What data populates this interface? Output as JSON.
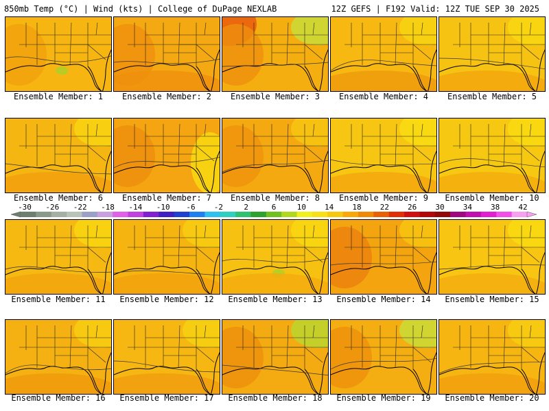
{
  "header": {
    "left": "850mb Temp (°C) | Wind (kts) | College of DuPage NEXLAB",
    "right": "12Z GEFS | F192 Valid: 12Z TUE SEP 30 2025"
  },
  "panels": [
    {
      "label": "Ensemble Member: 1",
      "base": "#f6b511",
      "accents": [
        {
          "c": "#f3a10e",
          "s": "w"
        },
        {
          "c": "#a9d229",
          "s": "gulf-spot"
        }
      ]
    },
    {
      "label": "Ensemble Member: 2",
      "base": "#f4a812",
      "accents": [
        {
          "c": "#ef900d",
          "s": "s"
        },
        {
          "c": "#ef900d",
          "s": "w"
        }
      ]
    },
    {
      "label": "Ensemble Member: 3",
      "base": "#f5ae10",
      "accents": [
        {
          "c": "#e8560f",
          "s": "nw"
        },
        {
          "c": "#ef8f0e",
          "s": "w"
        },
        {
          "c": "#c8df3a",
          "s": "ne"
        }
      ]
    },
    {
      "label": "Ensemble Member: 4",
      "base": "#f6b811",
      "accents": [
        {
          "c": "#f09a0d",
          "s": "s"
        },
        {
          "c": "#f8d611",
          "s": "ne"
        }
      ]
    },
    {
      "label": "Ensemble Member: 5",
      "base": "#f7c312",
      "accents": [
        {
          "c": "#f9d812",
          "s": "ne"
        },
        {
          "c": "#f3a50e",
          "s": "s"
        }
      ]
    },
    {
      "label": "Ensemble Member: 6",
      "base": "#f6b612",
      "accents": [
        {
          "c": "#f29f0e",
          "s": "s"
        },
        {
          "c": "#f9d611",
          "s": "ne"
        }
      ]
    },
    {
      "label": "Ensemble Member: 7",
      "base": "#f4a511",
      "accents": [
        {
          "c": "#ee8d0d",
          "s": "w"
        },
        {
          "c": "#f9dc12",
          "s": "e"
        }
      ]
    },
    {
      "label": "Ensemble Member: 8",
      "base": "#f4a911",
      "accents": [
        {
          "c": "#ef920d",
          "s": "w"
        },
        {
          "c": "#f7c711",
          "s": "ne"
        }
      ]
    },
    {
      "label": "Ensemble Member: 9",
      "base": "#f7c612",
      "accents": [
        {
          "c": "#f9dd12",
          "s": "ne"
        },
        {
          "c": "#f3a50e",
          "s": "s"
        }
      ]
    },
    {
      "label": "Ensemble Member: 10",
      "base": "#f7c812",
      "accents": [
        {
          "c": "#f9dc12",
          "s": "ne"
        },
        {
          "c": "#f4ad0f",
          "s": "s"
        }
      ]
    },
    {
      "label": "Ensemble Member: 11",
      "base": "#f6b912",
      "accents": [
        {
          "c": "#f3a40e",
          "s": "s"
        },
        {
          "c": "#f9d811",
          "s": "ne"
        }
      ]
    },
    {
      "label": "Ensemble Member: 12",
      "base": "#f6b411",
      "accents": [
        {
          "c": "#f2a10e",
          "s": "s"
        },
        {
          "c": "#f8d011",
          "s": "ne"
        }
      ]
    },
    {
      "label": "Ensemble Member: 13",
      "base": "#f7c111",
      "accents": [
        {
          "c": "#f9d911",
          "s": "ne"
        },
        {
          "c": "#a9d229",
          "s": "gulf-spot"
        },
        {
          "c": "#f4aa0f",
          "s": "s"
        }
      ]
    },
    {
      "label": "Ensemble Member: 14",
      "base": "#f3a40f",
      "accents": [
        {
          "c": "#ec7f0d",
          "s": "w"
        },
        {
          "c": "#f7c711",
          "s": "ne"
        }
      ]
    },
    {
      "label": "Ensemble Member: 15",
      "base": "#f7c512",
      "accents": [
        {
          "c": "#f9dc12",
          "s": "ne"
        },
        {
          "c": "#f4ab0f",
          "s": "s"
        }
      ]
    },
    {
      "label": "Ensemble Member: 16",
      "base": "#f5b112",
      "accents": [
        {
          "c": "#f09a0d",
          "s": "s"
        },
        {
          "c": "#f8d111",
          "s": "ne"
        }
      ]
    },
    {
      "label": "Ensemble Member: 17",
      "base": "#f6b712",
      "accents": [
        {
          "c": "#f19c0e",
          "s": "s"
        },
        {
          "c": "#f8d211",
          "s": "ne"
        }
      ]
    },
    {
      "label": "Ensemble Member: 18",
      "base": "#f4aa11",
      "accents": [
        {
          "c": "#b8d82f",
          "s": "ne"
        },
        {
          "c": "#ee900d",
          "s": "w"
        }
      ]
    },
    {
      "label": "Ensemble Member: 19",
      "base": "#f5ae11",
      "accents": [
        {
          "c": "#ef900d",
          "s": "w"
        },
        {
          "c": "#c8df3a",
          "s": "ne"
        }
      ]
    },
    {
      "label": "Ensemble Member: 20",
      "base": "#f6b511",
      "accents": [
        {
          "c": "#f29f0e",
          "s": "s"
        },
        {
          "c": "#f8d011",
          "s": "ne"
        }
      ]
    }
  ],
  "colorbar": {
    "labels": [
      "-30",
      "-26",
      "-22",
      "-18",
      "-14",
      "-10",
      "-6",
      "-2",
      "2",
      "6",
      "10",
      "14",
      "18",
      "22",
      "26",
      "30",
      "34",
      "38",
      "42"
    ],
    "colors": [
      "#6f7f6f",
      "#8a9a8a",
      "#a4b0a4",
      "#b8c4b8",
      "#9aa0c8",
      "#c8a0e0",
      "#e060e8",
      "#c040e0",
      "#8020d0",
      "#4020c0",
      "#2040d0",
      "#2080f0",
      "#30c0f0",
      "#30d0c0",
      "#30c070",
      "#30a030",
      "#70c020",
      "#b0d820",
      "#f0f020",
      "#f8e018",
      "#f8c810",
      "#f8a808",
      "#f08808",
      "#e86008",
      "#e03008",
      "#d01010",
      "#b00808",
      "#900808",
      "#a00880",
      "#c010b0",
      "#e020d0",
      "#f050e8",
      "#f8a0f0"
    ]
  }
}
